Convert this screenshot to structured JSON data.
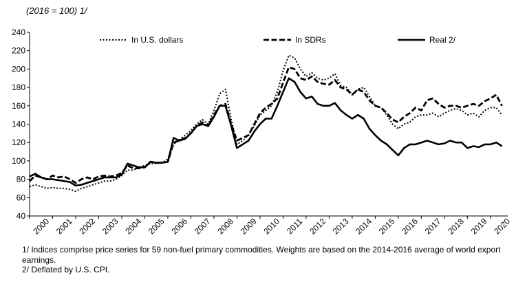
{
  "unit_label": "(2016 = 100) 1/",
  "footnotes": [
    "1/ Indices comprise price series for 59 non-fuel primary commodities. Weights are based on the 2014-2016 average of world export earnings.",
    "2/ Deflated by U.S. CPI."
  ],
  "chart_data": {
    "type": "line",
    "title": "",
    "xlabel": "",
    "ylabel": "(2016 = 100) 1/",
    "xlim": [
      2000,
      2020.75
    ],
    "ylim": [
      40,
      240
    ],
    "y_ticks": [
      40,
      60,
      80,
      100,
      120,
      140,
      160,
      180,
      200,
      220,
      240
    ],
    "x_tick_labels": [
      "2000",
      "2001",
      "2002",
      "2003",
      "2004",
      "2005",
      "2006",
      "2007",
      "2008",
      "2009",
      "2010",
      "2011",
      "2012",
      "2013",
      "2014",
      "2015",
      "2016",
      "2017",
      "2018",
      "2019",
      "2020"
    ],
    "grid": false,
    "legend_position": "top",
    "series": [
      {
        "name": "In U.S. dollars",
        "style": "dotted",
        "x": [
          2000.0,
          2000.25,
          2000.5,
          2000.75,
          2001.0,
          2001.25,
          2001.5,
          2001.75,
          2002.0,
          2002.25,
          2002.5,
          2002.75,
          2003.0,
          2003.25,
          2003.5,
          2003.75,
          2004.0,
          2004.25,
          2004.5,
          2004.75,
          2005.0,
          2005.25,
          2005.5,
          2005.75,
          2006.0,
          2006.25,
          2006.5,
          2006.75,
          2007.0,
          2007.25,
          2007.5,
          2007.75,
          2008.0,
          2008.25,
          2008.5,
          2008.75,
          2009.0,
          2009.25,
          2009.5,
          2009.75,
          2010.0,
          2010.25,
          2010.5,
          2010.75,
          2011.0,
          2011.25,
          2011.5,
          2011.75,
          2012.0,
          2012.25,
          2012.5,
          2012.75,
          2013.0,
          2013.25,
          2013.5,
          2013.75,
          2014.0,
          2014.25,
          2014.5,
          2014.75,
          2015.0,
          2015.25,
          2015.5,
          2015.75,
          2016.0,
          2016.25,
          2016.5,
          2016.75,
          2017.0,
          2017.25,
          2017.5,
          2017.75,
          2018.0,
          2018.25,
          2018.5,
          2018.75,
          2019.0,
          2019.25,
          2019.5,
          2019.75,
          2020.0,
          2020.25,
          2020.5
        ],
        "values": [
          72,
          74,
          72,
          70,
          71,
          70,
          70,
          69,
          67,
          70,
          72,
          74,
          76,
          78,
          78,
          80,
          84,
          90,
          90,
          93,
          95,
          97,
          97,
          98,
          102,
          118,
          123,
          128,
          133,
          140,
          145,
          140,
          155,
          173,
          178,
          145,
          118,
          122,
          128,
          138,
          150,
          155,
          160,
          175,
          198,
          215,
          212,
          200,
          192,
          196,
          190,
          188,
          190,
          195,
          182,
          180,
          172,
          178,
          180,
          170,
          160,
          158,
          150,
          140,
          135,
          140,
          142,
          148,
          150,
          150,
          152,
          148,
          152,
          155,
          157,
          155,
          150,
          152,
          148,
          155,
          158,
          158,
          150
        ]
      },
      {
        "name": "In SDRs",
        "style": "dashed",
        "x": [
          2000.0,
          2000.25,
          2000.5,
          2000.75,
          2001.0,
          2001.25,
          2001.5,
          2001.75,
          2002.0,
          2002.25,
          2002.5,
          2002.75,
          2003.0,
          2003.25,
          2003.5,
          2003.75,
          2004.0,
          2004.25,
          2004.5,
          2004.75,
          2005.0,
          2005.25,
          2005.5,
          2005.75,
          2006.0,
          2006.25,
          2006.5,
          2006.75,
          2007.0,
          2007.25,
          2007.5,
          2007.75,
          2008.0,
          2008.25,
          2008.5,
          2008.75,
          2009.0,
          2009.25,
          2009.5,
          2009.75,
          2010.0,
          2010.25,
          2010.5,
          2010.75,
          2011.0,
          2011.25,
          2011.5,
          2011.75,
          2012.0,
          2012.25,
          2012.5,
          2012.75,
          2013.0,
          2013.25,
          2013.5,
          2013.75,
          2014.0,
          2014.25,
          2014.5,
          2014.75,
          2015.0,
          2015.25,
          2015.5,
          2015.75,
          2016.0,
          2016.25,
          2016.5,
          2016.75,
          2017.0,
          2017.25,
          2017.5,
          2017.75,
          2018.0,
          2018.25,
          2018.5,
          2018.75,
          2019.0,
          2019.25,
          2019.5,
          2019.75,
          2020.0,
          2020.25,
          2020.5
        ],
        "values": [
          78,
          84,
          82,
          80,
          84,
          82,
          83,
          80,
          76,
          80,
          82,
          80,
          83,
          84,
          83,
          84,
          87,
          95,
          92,
          92,
          93,
          99,
          98,
          98,
          99,
          120,
          122,
          125,
          130,
          138,
          142,
          138,
          150,
          160,
          162,
          140,
          122,
          125,
          128,
          140,
          152,
          158,
          162,
          168,
          185,
          202,
          200,
          190,
          188,
          192,
          186,
          184,
          183,
          188,
          180,
          178,
          172,
          178,
          175,
          166,
          160,
          158,
          152,
          145,
          142,
          148,
          152,
          158,
          155,
          166,
          168,
          162,
          158,
          160,
          160,
          158,
          160,
          162,
          160,
          165,
          168,
          172,
          160
        ]
      },
      {
        "name": "Real 2/",
        "style": "solid",
        "x": [
          2000.0,
          2000.25,
          2000.5,
          2000.75,
          2001.0,
          2001.25,
          2001.5,
          2001.75,
          2002.0,
          2002.25,
          2002.5,
          2002.75,
          2003.0,
          2003.25,
          2003.5,
          2003.75,
          2004.0,
          2004.25,
          2004.5,
          2004.75,
          2005.0,
          2005.25,
          2005.5,
          2005.75,
          2006.0,
          2006.25,
          2006.5,
          2006.75,
          2007.0,
          2007.25,
          2007.5,
          2007.75,
          2008.0,
          2008.25,
          2008.5,
          2008.75,
          2009.0,
          2009.25,
          2009.5,
          2009.75,
          2010.0,
          2010.25,
          2010.5,
          2010.75,
          2011.0,
          2011.25,
          2011.5,
          2011.75,
          2012.0,
          2012.25,
          2012.5,
          2012.75,
          2013.0,
          2013.25,
          2013.5,
          2013.75,
          2014.0,
          2014.25,
          2014.5,
          2014.75,
          2015.0,
          2015.25,
          2015.5,
          2015.75,
          2016.0,
          2016.25,
          2016.5,
          2016.75,
          2017.0,
          2017.25,
          2017.5,
          2017.75,
          2018.0,
          2018.25,
          2018.5,
          2018.75,
          2019.0,
          2019.25,
          2019.5,
          2019.75,
          2020.0,
          2020.25,
          2020.5
        ],
        "values": [
          83,
          86,
          82,
          80,
          80,
          79,
          78,
          77,
          73,
          74,
          76,
          78,
          80,
          82,
          82,
          82,
          85,
          97,
          95,
          93,
          93,
          99,
          98,
          98,
          99,
          125,
          122,
          124,
          130,
          138,
          140,
          138,
          148,
          160,
          160,
          138,
          114,
          118,
          122,
          132,
          140,
          146,
          146,
          160,
          175,
          190,
          186,
          175,
          168,
          170,
          162,
          160,
          160,
          163,
          155,
          150,
          146,
          150,
          146,
          135,
          128,
          122,
          118,
          112,
          106,
          114,
          118,
          118,
          120,
          122,
          120,
          118,
          119,
          122,
          120,
          120,
          114,
          116,
          115,
          118,
          118,
          120,
          116
        ]
      }
    ]
  }
}
